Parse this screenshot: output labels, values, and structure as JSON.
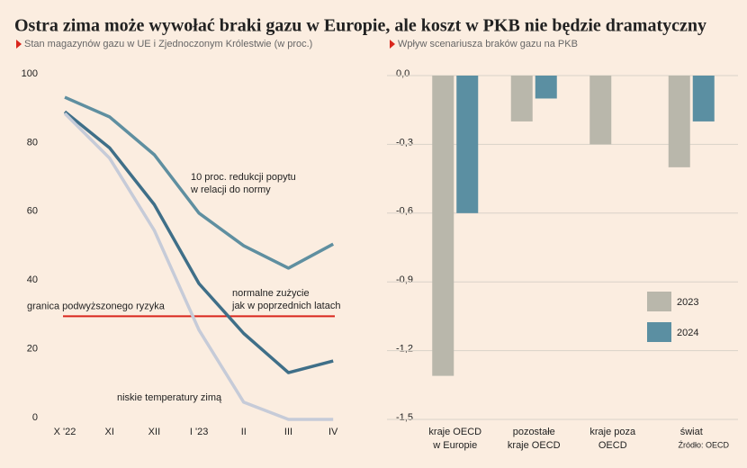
{
  "title": "Ostra zima może wywołać braki gazu w Europie, ale koszt w PKB nie będzie dramatyczny",
  "source": "Źródło: OECD",
  "chart_data": [
    {
      "type": "line",
      "subtitle": "Stan magazynów gazu w UE i Zjednoczonym Królestwie (w proc.)",
      "categories": [
        "X '22",
        "XI",
        "XII",
        "I '23",
        "II",
        "III",
        "IV"
      ],
      "ylim": [
        0,
        100
      ],
      "yticks": [
        0,
        20,
        40,
        60,
        80,
        100
      ],
      "grid": false,
      "series": [
        {
          "label": [
            "10 proc. redukcji popytu",
            "w relacji do normy"
          ],
          "color": "#5f8fa0",
          "values": [
            93.7,
            88,
            77,
            60,
            50.5,
            44,
            51
          ]
        },
        {
          "label": [
            "normalne zużycie",
            "jak w poprzednich latach"
          ],
          "color": "#3f6f88",
          "values": [
            89.5,
            79,
            62.5,
            39.5,
            25,
            13.6,
            17
          ]
        },
        {
          "label": [
            "niskie temperatury zimą"
          ],
          "color": "#c6cbd8",
          "values": [
            89,
            76,
            55,
            26,
            5,
            0,
            0
          ]
        }
      ],
      "threshold": {
        "value": 30,
        "label": "granica podwyższonego ryzyka",
        "color": "#d9261c"
      }
    },
    {
      "type": "bar",
      "subtitle": "Wpływ scenariusza braków gazu na PKB",
      "categories": [
        [
          "kraje OECD",
          "w Europie"
        ],
        [
          "pozostałe",
          "kraje OECD"
        ],
        [
          "kraje poza",
          "OECD"
        ],
        [
          "świat"
        ]
      ],
      "ylim": [
        -1.5,
        0
      ],
      "yticks": [
        {
          "value": 0,
          "label": "0,0"
        },
        {
          "value": -0.3,
          "label": "-0,3"
        },
        {
          "value": -0.6,
          "label": "-0,6"
        },
        {
          "value": -0.9,
          "label": "-0,9"
        },
        {
          "value": -1.2,
          "label": "-1,2"
        },
        {
          "value": -1.5,
          "label": "-1,5"
        }
      ],
      "grid": true,
      "legend": "lower right",
      "series": [
        {
          "name": "2023",
          "color": "#b9b7ab",
          "values": [
            -1.31,
            -0.2,
            -0.3,
            -0.4
          ]
        },
        {
          "name": "2024",
          "color": "#5b8fa2",
          "values": [
            -0.6,
            -0.1,
            null,
            -0.2
          ]
        }
      ]
    }
  ]
}
